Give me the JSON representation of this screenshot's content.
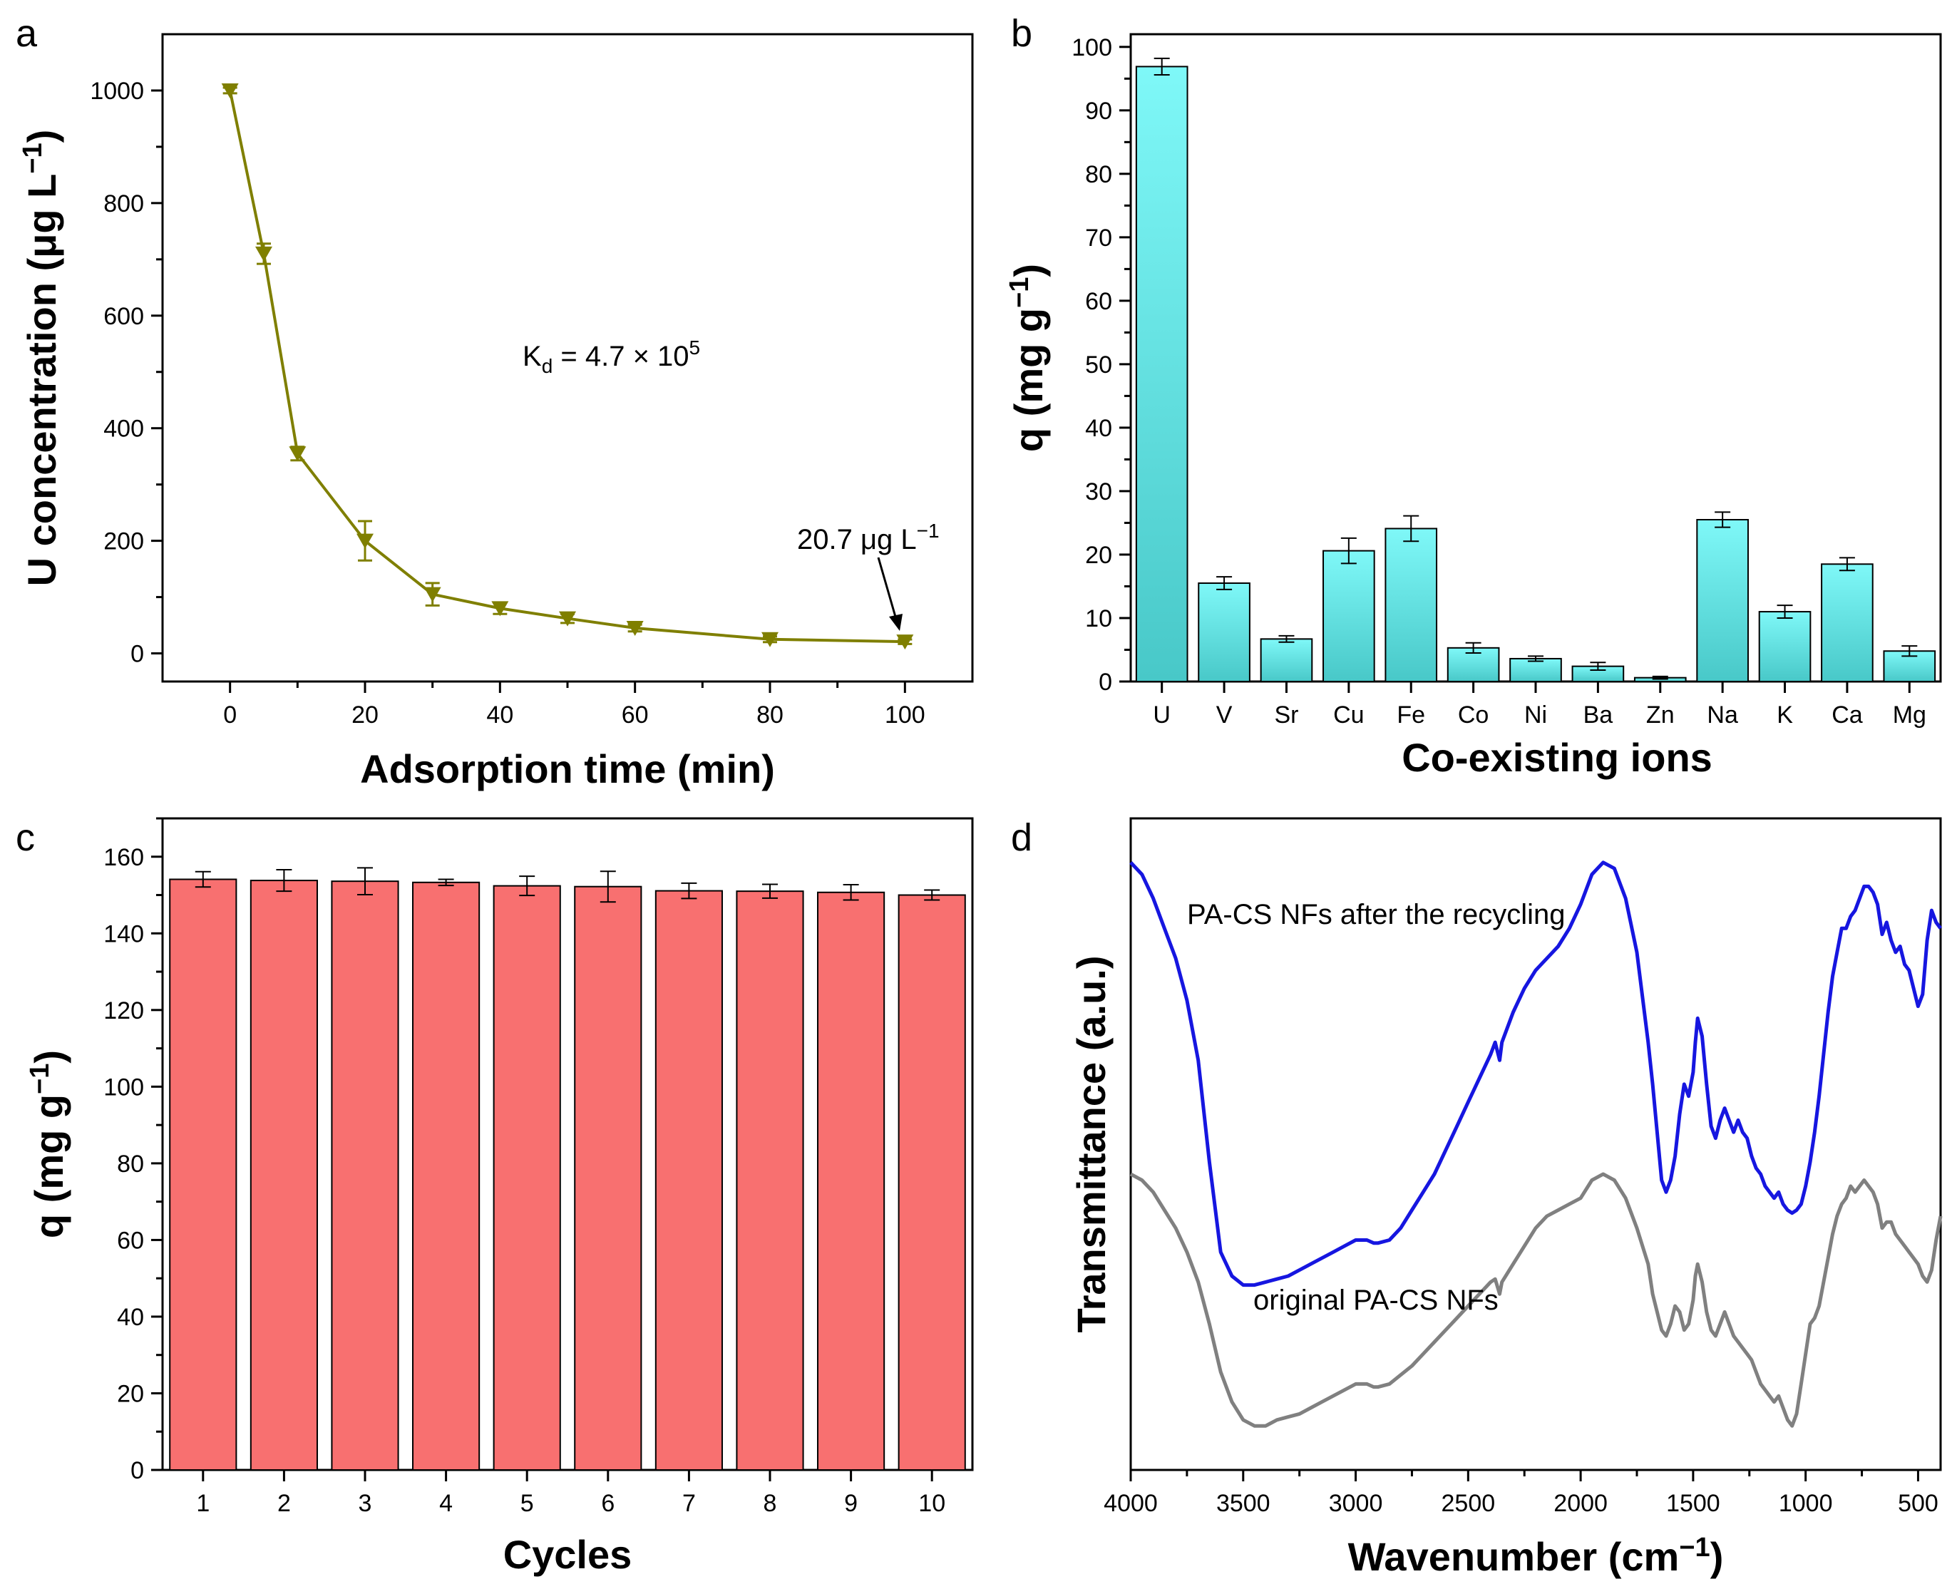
{
  "panel_labels": {
    "a": "a",
    "b": "b",
    "c": "c",
    "d": "d"
  },
  "colors": {
    "a_line": "#7f7f00",
    "b_bar_top": "#7ff8f8",
    "b_bar_bottom": "#48c8c8",
    "c_bar": "#f87070",
    "d_blue": "#1616e0",
    "d_gray": "#808080"
  },
  "chart_data": [
    {
      "id": "a",
      "type": "line",
      "xlabel": "Adsorption time (min)",
      "ylabel_main": "U concentration (μg L",
      "ylabel_sup": "−1",
      "ylabel_close": ")",
      "xlim": [
        -10,
        110
      ],
      "ylim": [
        -50,
        1100
      ],
      "xticks": [
        0,
        20,
        40,
        60,
        80,
        100
      ],
      "yticks": [
        0,
        200,
        400,
        600,
        800,
        1000
      ],
      "x": [
        0,
        5,
        10,
        20,
        30,
        40,
        50,
        60,
        80,
        100
      ],
      "y": [
        1000,
        710,
        355,
        200,
        105,
        80,
        62,
        45,
        25,
        20.7
      ],
      "err": [
        5,
        18,
        12,
        35,
        20,
        10,
        8,
        6,
        5,
        4
      ],
      "marker": "triangle-down",
      "kd_text_pre": "K",
      "kd_text_sub": "d",
      "kd_text_mid": " = 4.7 × 10",
      "kd_text_sup": "5",
      "end_label_main": "20.7 μg L",
      "end_label_sup": "−1"
    },
    {
      "id": "b",
      "type": "bar",
      "xlabel": "Co-existing ions",
      "ylabel_main": "q (mg g",
      "ylabel_sup": "−1",
      "ylabel_close": ")",
      "ylim": [
        0,
        102
      ],
      "yticks": [
        0,
        10,
        20,
        30,
        40,
        50,
        60,
        70,
        80,
        90,
        100
      ],
      "categories": [
        "U",
        "V",
        "Sr",
        "Cu",
        "Fe",
        "Co",
        "Ni",
        "Ba",
        "Zn",
        "Na",
        "K",
        "Ca",
        "Mg"
      ],
      "values": [
        96.9,
        15.5,
        6.7,
        20.6,
        24.1,
        5.3,
        3.6,
        2.4,
        0.6,
        25.5,
        11.0,
        18.5,
        4.8
      ],
      "err": [
        1.3,
        1.0,
        0.5,
        2.0,
        2.0,
        0.8,
        0.4,
        0.6,
        0.2,
        1.2,
        1.0,
        1.0,
        0.8
      ]
    },
    {
      "id": "c",
      "type": "bar",
      "xlabel": "Cycles",
      "ylabel_main": "q (mg g",
      "ylabel_sup": "−1",
      "ylabel_close": ")",
      "ylim": [
        0,
        170
      ],
      "yticks": [
        0,
        20,
        40,
        60,
        80,
        100,
        120,
        140,
        160
      ],
      "categories": [
        "1",
        "2",
        "3",
        "4",
        "5",
        "6",
        "7",
        "8",
        "9",
        "10"
      ],
      "values": [
        154.1,
        153.8,
        153.6,
        153.3,
        152.4,
        152.2,
        151.1,
        151.0,
        150.7,
        150.0
      ],
      "err": [
        2.0,
        2.8,
        3.5,
        0.8,
        2.5,
        4.0,
        2.0,
        1.8,
        2.0,
        1.3
      ]
    },
    {
      "id": "d",
      "type": "line",
      "xlabel_main": "Wavenumber (cm",
      "xlabel_sup": "−1",
      "xlabel_close": ")",
      "ylabel": "Transmittance (a.u.)",
      "xlim": [
        4000,
        400
      ],
      "ylim": [
        0,
        1
      ],
      "xticks": [
        4000,
        3500,
        3000,
        2500,
        2000,
        1500,
        1000,
        500
      ],
      "series": [
        {
          "name": "PA-CS NFs after the recycling",
          "x": [
            4000,
            3950,
            3900,
            3850,
            3800,
            3750,
            3700,
            3650,
            3600,
            3550,
            3500,
            3450,
            3400,
            3350,
            3300,
            3250,
            3200,
            3150,
            3100,
            3050,
            3000,
            2950,
            2920,
            2900,
            2850,
            2800,
            2750,
            2700,
            2650,
            2600,
            2550,
            2500,
            2450,
            2400,
            2380,
            2360,
            2350,
            2300,
            2250,
            2200,
            2150,
            2100,
            2050,
            2000,
            1950,
            1900,
            1850,
            1800,
            1750,
            1700,
            1680,
            1660,
            1640,
            1620,
            1600,
            1580,
            1560,
            1540,
            1520,
            1500,
            1490,
            1480,
            1460,
            1440,
            1420,
            1400,
            1380,
            1360,
            1340,
            1320,
            1300,
            1280,
            1260,
            1240,
            1220,
            1200,
            1180,
            1160,
            1140,
            1120,
            1100,
            1080,
            1060,
            1040,
            1020,
            1000,
            980,
            960,
            940,
            920,
            900,
            880,
            860,
            840,
            820,
            800,
            780,
            760,
            740,
            720,
            700,
            680,
            660,
            640,
            620,
            600,
            580,
            560,
            540,
            520,
            500,
            480,
            460,
            440,
            420,
            400
          ],
          "y": [
            0.97,
            0.95,
            0.91,
            0.86,
            0.81,
            0.74,
            0.64,
            0.47,
            0.32,
            0.28,
            0.265,
            0.265,
            0.27,
            0.275,
            0.28,
            0.29,
            0.3,
            0.31,
            0.32,
            0.33,
            0.34,
            0.34,
            0.335,
            0.335,
            0.34,
            0.36,
            0.39,
            0.42,
            0.45,
            0.49,
            0.53,
            0.57,
            0.61,
            0.65,
            0.67,
            0.64,
            0.67,
            0.72,
            0.76,
            0.79,
            0.81,
            0.83,
            0.86,
            0.9,
            0.95,
            0.97,
            0.96,
            0.91,
            0.82,
            0.67,
            0.6,
            0.52,
            0.44,
            0.42,
            0.44,
            0.48,
            0.55,
            0.6,
            0.58,
            0.62,
            0.67,
            0.71,
            0.68,
            0.6,
            0.53,
            0.51,
            0.54,
            0.56,
            0.54,
            0.52,
            0.54,
            0.52,
            0.51,
            0.48,
            0.46,
            0.45,
            0.43,
            0.42,
            0.41,
            0.42,
            0.4,
            0.39,
            0.385,
            0.39,
            0.4,
            0.43,
            0.47,
            0.52,
            0.58,
            0.65,
            0.72,
            0.78,
            0.82,
            0.86,
            0.86,
            0.88,
            0.89,
            0.91,
            0.93,
            0.93,
            0.92,
            0.9,
            0.85,
            0.87,
            0.84,
            0.82,
            0.83,
            0.8,
            0.79,
            0.76,
            0.73,
            0.75,
            0.84,
            0.89,
            0.87,
            0.86
          ]
        },
        {
          "name": "original PA-CS NFs",
          "x": [
            4000,
            3950,
            3900,
            3850,
            3800,
            3750,
            3700,
            3650,
            3600,
            3550,
            3500,
            3450,
            3400,
            3350,
            3300,
            3250,
            3200,
            3150,
            3100,
            3050,
            3000,
            2950,
            2920,
            2900,
            2850,
            2800,
            2750,
            2700,
            2650,
            2600,
            2550,
            2500,
            2450,
            2400,
            2380,
            2360,
            2350,
            2300,
            2250,
            2200,
            2150,
            2100,
            2050,
            2000,
            1950,
            1900,
            1850,
            1800,
            1750,
            1700,
            1680,
            1660,
            1640,
            1620,
            1600,
            1580,
            1560,
            1540,
            1520,
            1500,
            1490,
            1480,
            1460,
            1440,
            1420,
            1400,
            1380,
            1360,
            1340,
            1320,
            1300,
            1280,
            1260,
            1240,
            1220,
            1200,
            1180,
            1160,
            1140,
            1120,
            1100,
            1080,
            1060,
            1040,
            1020,
            1000,
            980,
            960,
            940,
            920,
            900,
            880,
            860,
            840,
            820,
            800,
            780,
            760,
            740,
            720,
            700,
            680,
            660,
            640,
            620,
            600,
            580,
            560,
            540,
            520,
            500,
            480,
            460,
            440,
            420,
            400
          ],
          "y": [
            0.45,
            0.44,
            0.42,
            0.39,
            0.36,
            0.32,
            0.27,
            0.2,
            0.12,
            0.07,
            0.04,
            0.03,
            0.03,
            0.04,
            0.045,
            0.05,
            0.06,
            0.07,
            0.08,
            0.09,
            0.1,
            0.1,
            0.095,
            0.095,
            0.1,
            0.115,
            0.13,
            0.15,
            0.17,
            0.19,
            0.21,
            0.23,
            0.25,
            0.27,
            0.275,
            0.25,
            0.27,
            0.3,
            0.33,
            0.36,
            0.38,
            0.39,
            0.4,
            0.41,
            0.44,
            0.45,
            0.44,
            0.41,
            0.36,
            0.3,
            0.25,
            0.22,
            0.19,
            0.18,
            0.2,
            0.23,
            0.22,
            0.19,
            0.2,
            0.24,
            0.28,
            0.3,
            0.27,
            0.22,
            0.19,
            0.18,
            0.2,
            0.22,
            0.2,
            0.18,
            0.17,
            0.16,
            0.15,
            0.14,
            0.12,
            0.1,
            0.09,
            0.08,
            0.07,
            0.08,
            0.06,
            0.04,
            0.03,
            0.05,
            0.1,
            0.15,
            0.2,
            0.21,
            0.23,
            0.27,
            0.31,
            0.35,
            0.38,
            0.4,
            0.41,
            0.43,
            0.42,
            0.43,
            0.44,
            0.43,
            0.42,
            0.4,
            0.36,
            0.37,
            0.37,
            0.35,
            0.34,
            0.33,
            0.32,
            0.31,
            0.3,
            0.28,
            0.27,
            0.29,
            0.34,
            0.38
          ]
        }
      ]
    }
  ]
}
